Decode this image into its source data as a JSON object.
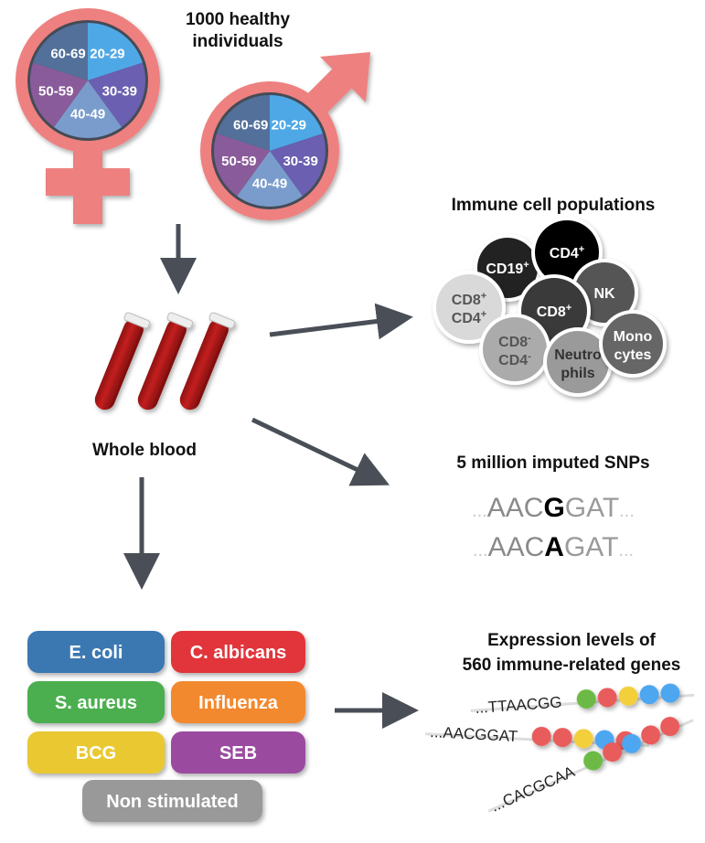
{
  "title": {
    "line1": "1000 healthy",
    "line2": "individuals"
  },
  "age_groups": [
    "20-29",
    "30-39",
    "40-49",
    "50-59",
    "60-69"
  ],
  "age_colors": [
    "#4fa8e6",
    "#6a5fb0",
    "#7a9ccc",
    "#8a5b9a",
    "#52709a"
  ],
  "symbol_color": "#ee8080",
  "arrow_color": "#4a4f57",
  "whole_blood": "Whole blood",
  "immune": {
    "title": "Immune cell populations",
    "cells": [
      {
        "l1": "CD19",
        "s1": "+",
        "l2": "",
        "s2": "",
        "fill": "#222222",
        "text": "#ffffff"
      },
      {
        "l1": "CD4",
        "s1": "+",
        "l2": "",
        "s2": "",
        "fill": "#000000",
        "text": "#ffffff"
      },
      {
        "l1": "NK",
        "s1": "",
        "l2": "",
        "s2": "",
        "fill": "#555555",
        "text": "#ffffff"
      },
      {
        "l1": "CD8",
        "s1": "+",
        "l2": "CD4",
        "s2": "+",
        "fill": "#d9d9d9",
        "text": "#555555"
      },
      {
        "l1": "CD8",
        "s1": "+",
        "l2": "",
        "s2": "",
        "fill": "#3a3a3a",
        "text": "#ffffff"
      },
      {
        "l1": "CD8",
        "s1": "-",
        "l2": "CD4",
        "s2": "-",
        "fill": "#ababab",
        "text": "#555555"
      },
      {
        "l1": "Neutro",
        "s1": "",
        "l2": "phils",
        "s2": "",
        "fill": "#9a9a9a",
        "text": "#333333"
      },
      {
        "l1": "Mono",
        "s1": "",
        "l2": "cytes",
        "s2": "",
        "fill": "#666666",
        "text": "#ffffff"
      }
    ]
  },
  "snps": {
    "title": "5 million imputed SNPs",
    "rows": [
      {
        "dots_l": "...",
        "pre": "AAC",
        "allele": "G",
        "post": "GAT",
        "dots_r": "..."
      },
      {
        "dots_l": "...",
        "pre": "AAC",
        "allele": "A",
        "post": "GAT",
        "dots_r": "..."
      }
    ]
  },
  "stimuli": [
    {
      "label": "E. coli",
      "color": "#3a78b2"
    },
    {
      "label": "C. albicans",
      "color": "#e1353b"
    },
    {
      "label": "S. aureus",
      "color": "#4caf50"
    },
    {
      "label": "Influenza",
      "color": "#f3892f"
    },
    {
      "label": "BCG",
      "color": "#e9c832"
    },
    {
      "label": "SEB",
      "color": "#9a4ca0"
    },
    {
      "label": "Non stimulated",
      "color": "#999999"
    }
  ],
  "expression": {
    "title_line1": "Expression levels of",
    "title_line2": "560 immune-related genes",
    "strands": [
      {
        "seq": "...TTAACGG",
        "beads": [
          "#6cba45",
          "#e85c5c",
          "#f2cf3a",
          "#4ea6f0",
          "#4ea6f0"
        ]
      },
      {
        "seq": "...AACGGAT",
        "beads": [
          "#e85c5c",
          "#e85c5c",
          "#f2cf3a",
          "#4ea6f0",
          "#e85c5c"
        ]
      },
      {
        "seq": "...CACGCAA",
        "beads": [
          "#6cba45",
          "#e85c5c",
          "#4ea6f0",
          "#e85c5c",
          "#e85c5c"
        ]
      }
    ]
  }
}
